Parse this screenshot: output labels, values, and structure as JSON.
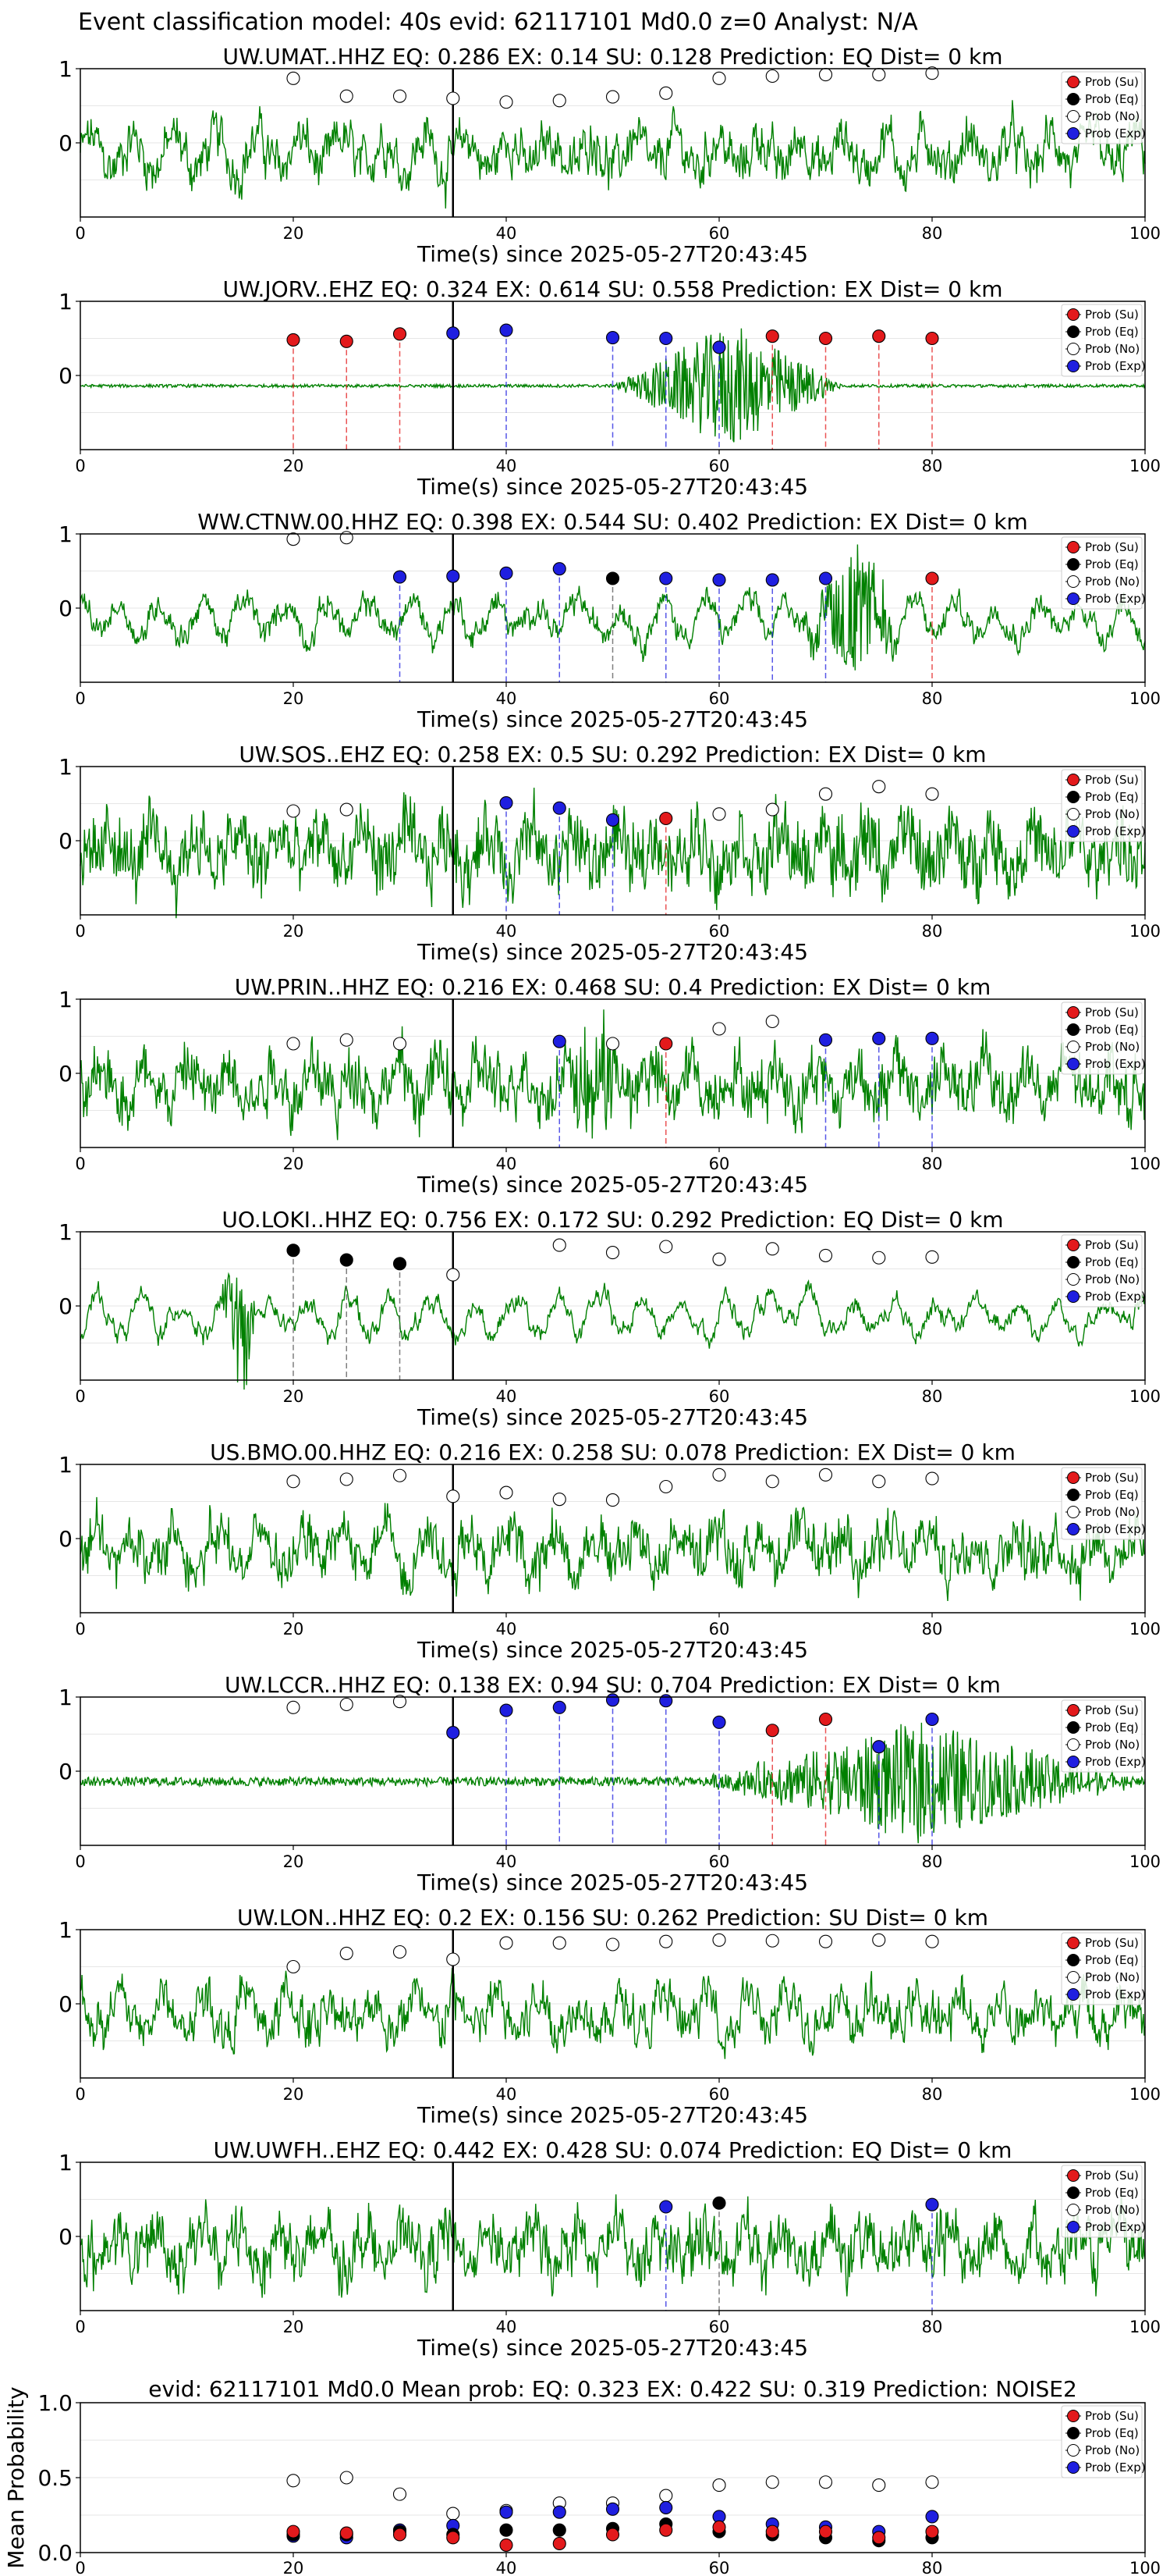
{
  "figure_title": "Event classification model: 40s evid: 62117101 Md0.0 z=0 Analyst: N/A",
  "xlabel": "Time(s) since 2025-05-27T20:43:45",
  "legend": [
    "Prob (Su)",
    "Prob (Eq)",
    "Prob (No)",
    "Prob (Exp)"
  ],
  "colors": {
    "su": "#e31a1c",
    "eq": "#000000",
    "no": "#ffffff",
    "exp": "#1f1fe0",
    "wave": "#008000",
    "pick": "#000000"
  },
  "chart_data": {
    "type": "line",
    "x_ticks": [
      0,
      20,
      40,
      60,
      80,
      100
    ],
    "y_ticks": [
      "1",
      "0"
    ],
    "xlim": [
      0,
      100
    ],
    "pick_time": 35,
    "window_times": [
      20,
      25,
      30,
      35,
      40,
      45,
      50,
      55,
      60,
      65,
      70,
      75,
      80
    ],
    "stations": [
      {
        "title": "UW.UMAT..HHZ   EQ: 0.286  EX: 0.14  SU: 0.128   Prediction: EQ    Dist= 0 km",
        "style": "noisy",
        "noise": 0.15,
        "burst": null,
        "points": [
          [
            "no",
            20,
            0.87
          ],
          [
            "no",
            25,
            0.63
          ],
          [
            "no",
            30,
            0.63
          ],
          [
            "no",
            35,
            0.6
          ],
          [
            "no",
            40,
            0.55
          ],
          [
            "no",
            45,
            0.57
          ],
          [
            "no",
            50,
            0.62
          ],
          [
            "no",
            55,
            0.67
          ],
          [
            "no",
            60,
            0.87
          ],
          [
            "no",
            65,
            0.9
          ],
          [
            "no",
            70,
            0.92
          ],
          [
            "no",
            75,
            0.92
          ],
          [
            "no",
            80,
            0.94
          ]
        ],
        "vlines": []
      },
      {
        "title": "UW.JORV..EHZ   EQ: 0.324  EX: 0.614  SU: 0.558   Prediction: EX    Dist= 0 km",
        "style": "flat",
        "noise": 0.02,
        "burst": [
          50,
          72,
          0.85
        ],
        "points": [
          [
            "su",
            20,
            0.48
          ],
          [
            "su",
            25,
            0.46
          ],
          [
            "su",
            30,
            0.56
          ],
          [
            "exp",
            35,
            0.57
          ],
          [
            "exp",
            40,
            0.61
          ],
          [
            "exp",
            50,
            0.51
          ],
          [
            "exp",
            55,
            0.5
          ],
          [
            "exp",
            60,
            0.38
          ],
          [
            "su",
            65,
            0.53
          ],
          [
            "su",
            70,
            0.5
          ],
          [
            "su",
            75,
            0.53
          ],
          [
            "su",
            80,
            0.5
          ]
        ],
        "vlines": [
          [
            "su",
            20
          ],
          [
            "su",
            25
          ],
          [
            "su",
            30
          ],
          [
            "exp",
            40
          ],
          [
            "exp",
            50
          ],
          [
            "exp",
            55
          ],
          [
            "exp",
            60
          ],
          [
            "su",
            65
          ],
          [
            "su",
            70
          ],
          [
            "su",
            75
          ],
          [
            "su",
            80
          ]
        ]
      },
      {
        "title": "WW.CTNW.00.HHZ   EQ: 0.398  EX: 0.544  SU: 0.402   Prediction: EX    Dist= 0 km",
        "style": "smooth",
        "noise": 0.1,
        "burst": [
          68,
          77,
          0.95
        ],
        "points": [
          [
            "no",
            20,
            0.93
          ],
          [
            "no",
            25,
            0.95
          ],
          [
            "exp",
            30,
            0.42
          ],
          [
            "exp",
            35,
            0.43
          ],
          [
            "exp",
            40,
            0.47
          ],
          [
            "exp",
            45,
            0.53
          ],
          [
            "eq",
            50,
            0.4
          ],
          [
            "exp",
            55,
            0.4
          ],
          [
            "exp",
            60,
            0.38
          ],
          [
            "exp",
            65,
            0.38
          ],
          [
            "exp",
            70,
            0.4
          ],
          [
            "su",
            80,
            0.4
          ]
        ],
        "vlines": [
          [
            "exp",
            30
          ],
          [
            "exp",
            40
          ],
          [
            "exp",
            45
          ],
          [
            "eq",
            50
          ],
          [
            "exp",
            55
          ],
          [
            "exp",
            60
          ],
          [
            "exp",
            65
          ],
          [
            "exp",
            70
          ],
          [
            "su",
            80
          ]
        ]
      },
      {
        "title": "UW.SOS..EHZ   EQ: 0.258  EX: 0.5  SU: 0.292   Prediction: EX    Dist= 0 km",
        "style": "dense",
        "noise": 0.35,
        "burst": null,
        "points": [
          [
            "no",
            20,
            0.4
          ],
          [
            "no",
            25,
            0.42
          ],
          [
            "exp",
            40,
            0.51
          ],
          [
            "exp",
            45,
            0.44
          ],
          [
            "exp",
            50,
            0.28
          ],
          [
            "su",
            55,
            0.3
          ],
          [
            "no",
            60,
            0.36
          ],
          [
            "no",
            65,
            0.42
          ],
          [
            "no",
            70,
            0.63
          ],
          [
            "no",
            75,
            0.73
          ],
          [
            "no",
            80,
            0.63
          ]
        ],
        "vlines": [
          [
            "exp",
            40
          ],
          [
            "exp",
            45
          ],
          [
            "exp",
            50
          ],
          [
            "su",
            55
          ]
        ]
      },
      {
        "title": "UW.PRIN..HHZ   EQ: 0.216  EX: 0.468  SU: 0.4   Prediction: EX    Dist= 0 km",
        "style": "dense",
        "noise": 0.28,
        "burst": [
          45,
          52,
          0.8
        ],
        "points": [
          [
            "no",
            20,
            0.4
          ],
          [
            "no",
            25,
            0.45
          ],
          [
            "no",
            30,
            0.4
          ],
          [
            "exp",
            45,
            0.43
          ],
          [
            "no",
            50,
            0.4
          ],
          [
            "su",
            55,
            0.4
          ],
          [
            "no",
            60,
            0.6
          ],
          [
            "no",
            65,
            0.7
          ],
          [
            "exp",
            70,
            0.45
          ],
          [
            "exp",
            75,
            0.47
          ],
          [
            "exp",
            80,
            0.47
          ]
        ],
        "vlines": [
          [
            "exp",
            45
          ],
          [
            "su",
            55
          ],
          [
            "exp",
            70
          ],
          [
            "exp",
            75
          ],
          [
            "exp",
            80
          ]
        ]
      },
      {
        "title": "UO.LOKI..HHZ   EQ: 0.756  EX: 0.172  SU: 0.292   Prediction: EQ    Dist= 0 km",
        "style": "smooth",
        "noise": 0.05,
        "burst": [
          13,
          17,
          0.9
        ],
        "points": [
          [
            "eq",
            20,
            0.75
          ],
          [
            "eq",
            25,
            0.62
          ],
          [
            "eq",
            30,
            0.57
          ],
          [
            "no",
            35,
            0.42
          ],
          [
            "no",
            45,
            0.82
          ],
          [
            "no",
            50,
            0.72
          ],
          [
            "no",
            55,
            0.8
          ],
          [
            "no",
            60,
            0.63
          ],
          [
            "no",
            65,
            0.77
          ],
          [
            "no",
            70,
            0.68
          ],
          [
            "no",
            75,
            0.65
          ],
          [
            "no",
            80,
            0.66
          ]
        ],
        "vlines": [
          [
            "eq",
            20
          ],
          [
            "eq",
            25
          ],
          [
            "eq",
            30
          ]
        ]
      },
      {
        "title": "US.BMO.00.HHZ   EQ: 0.216  EX: 0.258  SU: 0.078   Prediction: EX    Dist= 0 km",
        "style": "noisy",
        "noise": 0.2,
        "burst": null,
        "points": [
          [
            "no",
            20,
            0.77
          ],
          [
            "no",
            25,
            0.8
          ],
          [
            "no",
            30,
            0.85
          ],
          [
            "no",
            35,
            0.57
          ],
          [
            "no",
            40,
            0.62
          ],
          [
            "no",
            45,
            0.53
          ],
          [
            "no",
            50,
            0.52
          ],
          [
            "no",
            55,
            0.7
          ],
          [
            "no",
            60,
            0.86
          ],
          [
            "no",
            65,
            0.77
          ],
          [
            "no",
            70,
            0.86
          ],
          [
            "no",
            75,
            0.77
          ],
          [
            "no",
            80,
            0.81
          ]
        ],
        "vlines": []
      },
      {
        "title": "UW.LCCR..HHZ   EQ: 0.138  EX: 0.94  SU: 0.704   Prediction: EX    Dist= 0 km",
        "style": "flat",
        "noise": 0.06,
        "burst": [
          58,
          100,
          0.8
        ],
        "points": [
          [
            "no",
            20,
            0.86
          ],
          [
            "no",
            25,
            0.9
          ],
          [
            "no",
            30,
            0.94
          ],
          [
            "exp",
            35,
            0.52
          ],
          [
            "exp",
            40,
            0.82
          ],
          [
            "exp",
            45,
            0.86
          ],
          [
            "exp",
            50,
            0.96
          ],
          [
            "exp",
            55,
            0.95
          ],
          [
            "exp",
            60,
            0.66
          ],
          [
            "su",
            65,
            0.55
          ],
          [
            "su",
            70,
            0.7
          ],
          [
            "exp",
            75,
            0.33
          ],
          [
            "exp",
            80,
            0.7
          ]
        ],
        "vlines": [
          [
            "exp",
            40
          ],
          [
            "exp",
            45
          ],
          [
            "exp",
            50
          ],
          [
            "exp",
            55
          ],
          [
            "exp",
            60
          ],
          [
            "su",
            65
          ],
          [
            "su",
            70
          ],
          [
            "exp",
            75
          ],
          [
            "exp",
            80
          ]
        ]
      },
      {
        "title": "UW.LON..HHZ   EQ: 0.2  EX: 0.156  SU: 0.262   Prediction: SU    Dist= 0 km",
        "style": "noisy",
        "noise": 0.15,
        "burst": null,
        "points": [
          [
            "no",
            20,
            0.5
          ],
          [
            "no",
            25,
            0.68
          ],
          [
            "no",
            30,
            0.7
          ],
          [
            "no",
            35,
            0.6
          ],
          [
            "no",
            40,
            0.82
          ],
          [
            "no",
            45,
            0.82
          ],
          [
            "no",
            50,
            0.8
          ],
          [
            "no",
            55,
            0.84
          ],
          [
            "no",
            60,
            0.86
          ],
          [
            "no",
            65,
            0.85
          ],
          [
            "no",
            70,
            0.84
          ],
          [
            "no",
            75,
            0.86
          ],
          [
            "no",
            80,
            0.84
          ]
        ],
        "vlines": []
      },
      {
        "title": "UW.UWFH..EHZ   EQ: 0.442  EX: 0.428  SU: 0.074   Prediction: EQ    Dist= 0 km",
        "style": "noisy",
        "noise": 0.25,
        "burst": null,
        "points": [
          [
            "exp",
            55,
            0.4
          ],
          [
            "eq",
            60,
            0.45
          ],
          [
            "exp",
            80,
            0.43
          ]
        ],
        "vlines": [
          [
            "exp",
            55
          ],
          [
            "eq",
            60
          ],
          [
            "exp",
            80
          ]
        ]
      }
    ],
    "mean_panel": {
      "title": "evid: 62117101  Md0.0   Mean prob:   EQ: 0.323  EX: 0.422  SU: 0.319   Prediction: NOISE2",
      "ylabel": "Mean Probability",
      "y_ticks": [
        "1.0",
        "0.5",
        "0.0"
      ],
      "ylim": [
        0,
        1
      ],
      "x": [
        20,
        25,
        30,
        35,
        40,
        45,
        50,
        55,
        60,
        65,
        70,
        75,
        80
      ],
      "su": [
        0.14,
        0.13,
        0.12,
        0.1,
        0.05,
        0.06,
        0.12,
        0.15,
        0.17,
        0.14,
        0.14,
        0.1,
        0.14
      ],
      "eq": [
        0.12,
        0.12,
        0.14,
        0.12,
        0.15,
        0.15,
        0.16,
        0.19,
        0.14,
        0.12,
        0.1,
        0.08,
        0.1
      ],
      "no": [
        0.48,
        0.5,
        0.39,
        0.26,
        0.28,
        0.33,
        0.33,
        0.38,
        0.45,
        0.47,
        0.47,
        0.45,
        0.47
      ],
      "exp": [
        0.11,
        0.1,
        0.15,
        0.18,
        0.27,
        0.27,
        0.29,
        0.3,
        0.24,
        0.19,
        0.17,
        0.14,
        0.24
      ]
    }
  }
}
